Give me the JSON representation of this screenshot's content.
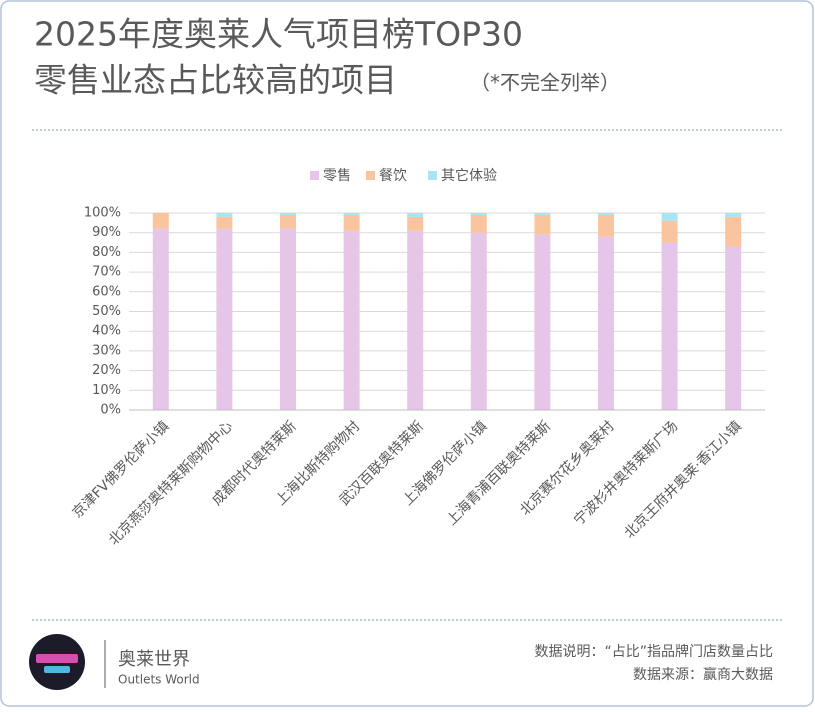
{
  "chart_data": {
    "type": "stacked_bar",
    "title": "2025年度奥莱人气项目榜TOP30",
    "subtitle": "零售业态占比较高的项目",
    "note": "（*不完全列举）",
    "categories": [
      "京津FV佛罗伦萨小镇",
      "北京燕莎奥特莱斯购物中心",
      "成都时代奥特莱斯",
      "上海比斯特购物村",
      "武汉百联奥特莱斯",
      "上海佛罗伦萨小镇",
      "上海青浦百联奥特莱斯",
      "北京赛尔花乡奥莱村",
      "宁波杉井奥特莱斯广场",
      "北京王府井奥莱·香江小镇"
    ],
    "series": [
      {
        "name": "零售",
        "color": "#e6c6e8",
        "values": [
          92,
          92,
          92,
          91,
          91,
          90,
          89,
          88,
          85,
          83
        ]
      },
      {
        "name": "餐饮",
        "color": "#f9c49e",
        "values": [
          8,
          6,
          7,
          8,
          7,
          9,
          10,
          11,
          11,
          15
        ]
      },
      {
        "name": "其它体验",
        "color": "#a9e4f2",
        "values": [
          0,
          2,
          1,
          1,
          2,
          1,
          1,
          1,
          4,
          2
        ]
      }
    ],
    "ylim": [
      0,
      100
    ],
    "yticks": [
      {
        "value": 0,
        "label": "0%"
      },
      {
        "value": 10,
        "label": "10%"
      },
      {
        "value": 20,
        "label": "20%"
      },
      {
        "value": 30,
        "label": "30%"
      },
      {
        "value": 40,
        "label": "40%"
      },
      {
        "value": 50,
        "label": "50%"
      },
      {
        "value": 60,
        "label": "60%"
      },
      {
        "value": 70,
        "label": "70%"
      },
      {
        "value": 80,
        "label": "80%"
      },
      {
        "value": 90,
        "label": "90%"
      },
      {
        "value": 100,
        "label": "100%"
      }
    ],
    "grid": true,
    "legend": "top"
  },
  "footer": {
    "brand": "奥莱世界",
    "brand_en": "Outlets World",
    "explanation": "数据说明：“占比”指品牌门店数量占比",
    "source": "数据来源：赢商大数据"
  }
}
